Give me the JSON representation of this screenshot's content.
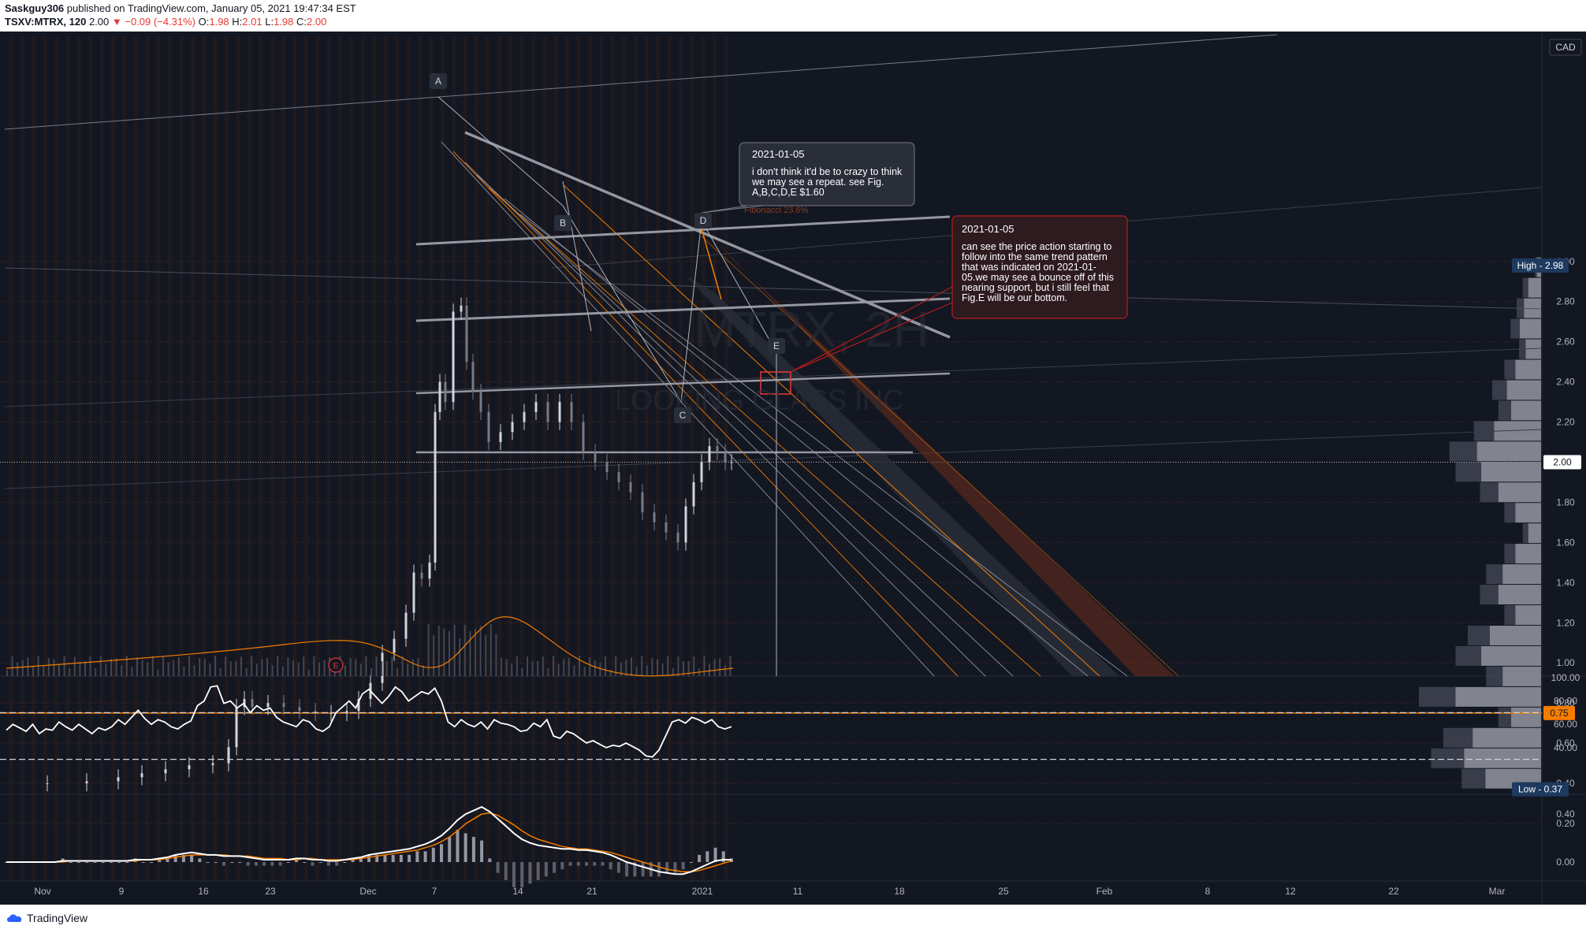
{
  "header": {
    "author": "Saskguy306",
    "published": "published on TradingView.com, January 05, 2021 19:47:34 EST",
    "symbol": "TSXV:MTRX, 120",
    "last": "2.00",
    "change": "−0.09 (−4.31%)",
    "o_label": "O:",
    "o": "1.98",
    "h_label": "H:",
    "h": "2.01",
    "l_label": "L:",
    "l": "1.98",
    "c_label": "C:",
    "c": "2.00"
  },
  "footer": {
    "brand": "TradingView"
  },
  "chart_data": {
    "type": "candlestick",
    "currency": "CAD",
    "price_axis": {
      "ticks": [
        "3.00",
        "2.80",
        "2.60",
        "2.40",
        "2.20",
        "2.00",
        "1.80",
        "1.60",
        "1.40",
        "1.20",
        "1.00",
        "0.80",
        "0.60",
        "0.40",
        "0.20"
      ],
      "range": [
        0.13,
        3.08
      ]
    },
    "price_badges": {
      "high": "High - 2.98",
      "last": "2.00",
      "level": "0.75",
      "low": "Low - 0.37"
    },
    "time_axis": [
      "Nov",
      "9",
      "16",
      "23",
      "Dec",
      "7",
      "14",
      "21",
      "2021",
      "11",
      "18",
      "25",
      "Feb",
      "8",
      "12",
      "22",
      "Mar"
    ],
    "pattern_labels": [
      "A",
      "B",
      "C",
      "D",
      "E"
    ],
    "volume_profile": [
      0.05,
      0.15,
      0.2,
      0.25,
      0.18,
      0.3,
      0.4,
      0.35,
      0.55,
      0.75,
      0.7,
      0.5,
      0.3,
      0.15,
      0.3,
      0.45,
      0.5,
      0.3,
      0.6,
      0.7,
      0.45,
      1.0,
      0.35,
      0.8,
      0.9,
      0.65
    ],
    "annotations": [
      {
        "date": "2021-01-05",
        "text": "i don't think it'd be to crazy to think we may see a repeat. see Fig. A,B,C,D,E $1.60"
      },
      {
        "date": "2021-01-05",
        "text": "can see the price action starting to follow into the same trend pattern that was indicated on 2021-01-05.we may see a bounce off of this nearing support, but i still feel that Fig.E will be our bottom."
      }
    ],
    "fib_label": "Fibonacci 23.6%",
    "event_marker": "E",
    "rsi": {
      "ticks": [
        "100.00",
        "80.00",
        "60.00",
        "40.00"
      ],
      "bands": [
        70,
        30
      ],
      "values": [
        55,
        60,
        57,
        54,
        60,
        52,
        56,
        55,
        62,
        58,
        55,
        60,
        56,
        52,
        57,
        55,
        58,
        64,
        60,
        66,
        72,
        65,
        60,
        64,
        62,
        58,
        56,
        60,
        63,
        76,
        80,
        92,
        93,
        78,
        80,
        74,
        78,
        70,
        76,
        72,
        74,
        66,
        62,
        60,
        58,
        64,
        62,
        56,
        54,
        58,
        70,
        75,
        80,
        74,
        86,
        90,
        84,
        78,
        84,
        92,
        88,
        80,
        84,
        88,
        86,
        91,
        80,
        62,
        58,
        64,
        60,
        58,
        62,
        56,
        64,
        61,
        60,
        58,
        54,
        55,
        61,
        58,
        64,
        50,
        48,
        54,
        52,
        48,
        44,
        46,
        43,
        40,
        42,
        41,
        44,
        41,
        38,
        33,
        32,
        38,
        50,
        62,
        64,
        61,
        66,
        64,
        61,
        64,
        58,
        56,
        58
      ],
      "values_note": "2-hour bars"
    },
    "macd": {
      "ticks": [
        "0.40",
        "0.00"
      ],
      "macd": [
        0.0,
        0.0,
        0.0,
        0.0,
        0.0,
        0.0,
        0.0,
        0.01,
        0.01,
        0.01,
        0.01,
        0.01,
        0.01,
        0.01,
        0.01,
        0.01,
        0.02,
        0.02,
        0.02,
        0.03,
        0.04,
        0.06,
        0.07,
        0.08,
        0.07,
        0.06,
        0.06,
        0.05,
        0.05,
        0.05,
        0.04,
        0.03,
        0.02,
        0.02,
        0.02,
        0.02,
        0.03,
        0.03,
        0.02,
        0.02,
        0.01,
        0.01,
        0.02,
        0.03,
        0.04,
        0.06,
        0.07,
        0.08,
        0.09,
        0.1,
        0.11,
        0.13,
        0.15,
        0.18,
        0.22,
        0.28,
        0.35,
        0.4,
        0.43,
        0.46,
        0.42,
        0.36,
        0.3,
        0.24,
        0.19,
        0.16,
        0.14,
        0.13,
        0.12,
        0.11,
        0.11,
        0.1,
        0.1,
        0.09,
        0.08,
        0.06,
        0.03,
        0.0,
        -0.02,
        -0.04,
        -0.06,
        -0.08,
        -0.09,
        -0.1,
        -0.1,
        -0.08,
        -0.05,
        -0.02,
        0.01,
        0.02,
        0.02
      ],
      "signal": [
        0.0,
        0.0,
        0.0,
        0.0,
        0.0,
        0.0,
        0.0,
        0.0,
        0.01,
        0.01,
        0.01,
        0.01,
        0.01,
        0.01,
        0.01,
        0.01,
        0.01,
        0.02,
        0.02,
        0.02,
        0.03,
        0.04,
        0.05,
        0.06,
        0.06,
        0.06,
        0.06,
        0.06,
        0.05,
        0.05,
        0.05,
        0.04,
        0.03,
        0.03,
        0.03,
        0.02,
        0.02,
        0.03,
        0.03,
        0.02,
        0.02,
        0.02,
        0.02,
        0.02,
        0.03,
        0.04,
        0.05,
        0.06,
        0.07,
        0.08,
        0.09,
        0.1,
        0.12,
        0.14,
        0.17,
        0.21,
        0.26,
        0.32,
        0.36,
        0.4,
        0.41,
        0.39,
        0.35,
        0.31,
        0.26,
        0.22,
        0.19,
        0.17,
        0.15,
        0.13,
        0.12,
        0.11,
        0.11,
        0.1,
        0.09,
        0.08,
        0.06,
        0.04,
        0.02,
        0.0,
        -0.02,
        -0.04,
        -0.06,
        -0.07,
        -0.08,
        -0.08,
        -0.07,
        -0.05,
        -0.03,
        -0.01,
        0.01
      ]
    },
    "colors": {
      "background": "#131722",
      "accent_orange": "#f57c00",
      "annotation_red": "#b71c1c",
      "text": "#d1d4dc",
      "high_badge": "#1e3a5f"
    }
  }
}
